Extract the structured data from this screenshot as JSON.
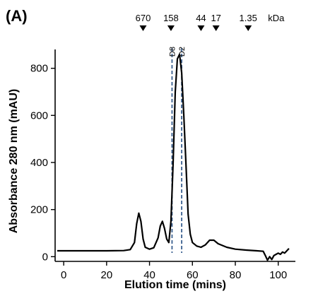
{
  "panel_label": "(A)",
  "chart_data": {
    "type": "line",
    "title": "",
    "xlabel": "Elution time (mins)",
    "ylabel": "Absorbance  280 nm (mAU)",
    "xlim": [
      -4,
      108
    ],
    "ylim": [
      -20,
      880
    ],
    "xticks": [
      0,
      20,
      40,
      60,
      80,
      100
    ],
    "yticks": [
      0,
      200,
      400,
      600,
      800
    ],
    "grid": false,
    "legend": "none",
    "series": [
      {
        "color": "#000000",
        "x": [
          -3,
          0,
          10,
          20,
          28,
          31,
          33,
          34,
          35,
          36,
          37,
          38,
          40,
          42,
          44,
          45,
          46,
          47,
          48,
          49,
          50,
          51,
          52,
          53,
          54,
          55,
          56,
          57,
          58,
          59,
          60,
          62,
          64,
          66,
          68,
          70,
          72,
          76,
          80,
          85,
          90,
          93,
          94,
          95,
          96,
          97,
          98,
          99,
          100,
          101,
          102,
          103,
          104,
          105
        ],
        "y": [
          25,
          25,
          25,
          25,
          26,
          30,
          60,
          140,
          185,
          150,
          75,
          40,
          32,
          38,
          80,
          130,
          150,
          120,
          75,
          60,
          150,
          400,
          700,
          840,
          860,
          780,
          600,
          390,
          180,
          95,
          60,
          45,
          40,
          50,
          70,
          70,
          55,
          40,
          32,
          28,
          25,
          23,
          5,
          -15,
          0,
          -12,
          5,
          10,
          15,
          10,
          20,
          15,
          25,
          35
        ]
      }
    ],
    "size_markers": {
      "unit": "kDa",
      "items": [
        {
          "label": "670",
          "x": 37
        },
        {
          "label": "158",
          "x": 50
        },
        {
          "label": "44",
          "x": 64
        },
        {
          "label": "17",
          "x": 71
        },
        {
          "label": "1.35",
          "x": 86
        }
      ]
    },
    "fractions": [
      {
        "label": "D8",
        "x": 50.5
      },
      {
        "label": "D2",
        "x": 55
      }
    ]
  }
}
